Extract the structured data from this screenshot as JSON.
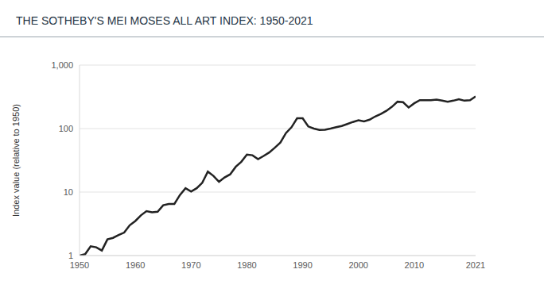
{
  "chart_data": {
    "type": "line",
    "title": "THE SOTHEBY'S MEI MOSES ALL ART INDEX: 1950-2021",
    "y_label": "Index value (relative to 1950)",
    "x": [
      1950,
      1951,
      1952,
      1953,
      1954,
      1955,
      1956,
      1957,
      1958,
      1959,
      1960,
      1961,
      1962,
      1963,
      1964,
      1965,
      1966,
      1967,
      1968,
      1969,
      1970,
      1971,
      1972,
      1973,
      1974,
      1975,
      1976,
      1977,
      1978,
      1979,
      1980,
      1981,
      1982,
      1983,
      1984,
      1985,
      1986,
      1987,
      1988,
      1989,
      1990,
      1991,
      1992,
      1993,
      1994,
      1995,
      1996,
      1997,
      1998,
      1999,
      2000,
      2001,
      2002,
      2003,
      2004,
      2005,
      2006,
      2007,
      2008,
      2009,
      2010,
      2011,
      2012,
      2013,
      2014,
      2015,
      2016,
      2017,
      2018,
      2019,
      2020,
      2021
    ],
    "values": [
      1.0,
      1.05,
      1.4,
      1.35,
      1.2,
      1.8,
      1.9,
      2.1,
      2.3,
      3.0,
      3.5,
      4.3,
      5.0,
      4.8,
      4.9,
      6.2,
      6.5,
      6.5,
      9.0,
      11.5,
      10.2,
      11.5,
      14,
      21,
      18,
      14.5,
      17,
      19,
      25,
      30,
      39,
      38,
      33,
      37,
      42,
      50,
      60,
      85,
      105,
      145,
      145,
      108,
      100,
      95,
      96,
      100,
      105,
      110,
      118,
      127,
      135,
      130,
      138,
      155,
      170,
      190,
      220,
      265,
      260,
      215,
      250,
      280,
      280,
      280,
      285,
      275,
      265,
      275,
      290,
      275,
      280,
      320
    ],
    "color": "#222222",
    "xlim": [
      1950,
      2021
    ],
    "xticks": [
      1950,
      1960,
      1970,
      1980,
      1990,
      2000,
      2010,
      2021
    ],
    "ylim": [
      1,
      1000
    ],
    "yticks": [
      1,
      10,
      100,
      {
        "value": 1000,
        "label": "1,000"
      }
    ],
    "log": "y",
    "grid": true
  }
}
